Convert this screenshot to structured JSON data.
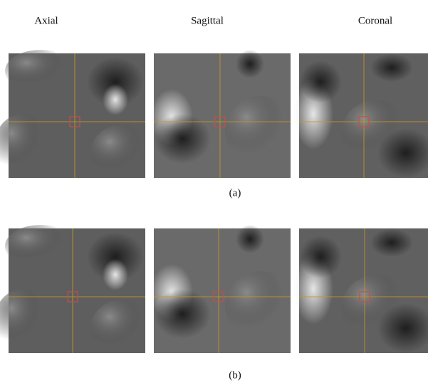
{
  "column_labels": [
    "Axial",
    "Sagittal",
    "Coronal"
  ],
  "captions": [
    "(a)",
    "(b)"
  ]
}
